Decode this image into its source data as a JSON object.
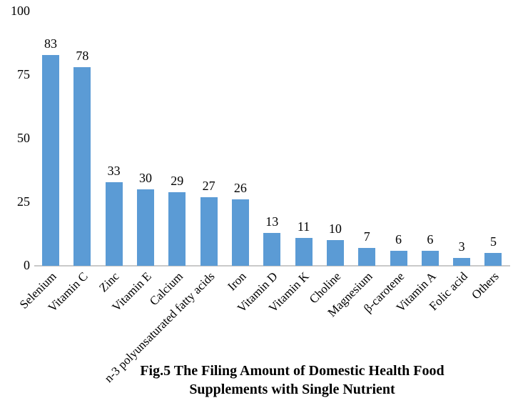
{
  "figure": {
    "title_line1": "Fig.5 The Filing Amount of Domestic Health Food",
    "title_line2": "Supplements with Single Nutrient"
  },
  "chart_data": {
    "type": "bar",
    "categories": [
      "Selenium",
      "Vitamin C",
      "Zinc",
      "Vitamin E",
      "Calcium",
      "n-3 polyunsaturated fatty acids",
      "Iron",
      "Vitamin D",
      "Vitamin K",
      "Choline",
      "Magnesium",
      "β-carotene",
      "Vitamin A",
      "Folic acid",
      "Others"
    ],
    "values": [
      83,
      78,
      33,
      30,
      29,
      27,
      26,
      13,
      11,
      10,
      7,
      6,
      6,
      3,
      5
    ],
    "title": "Fig.5 The Filing Amount of Domestic Health Food Supplements with Single Nutrient",
    "xlabel": "",
    "ylabel": "",
    "ylim": [
      0,
      100
    ],
    "yticks": [
      0,
      25,
      50,
      75,
      100
    ],
    "grid": false,
    "legend": false,
    "value_labels_shown": true,
    "category_label_rotation_deg": 45,
    "bar_color": "#5B9BD5",
    "axis_line_color": "#C9C9C9",
    "text_color": "#000000"
  }
}
